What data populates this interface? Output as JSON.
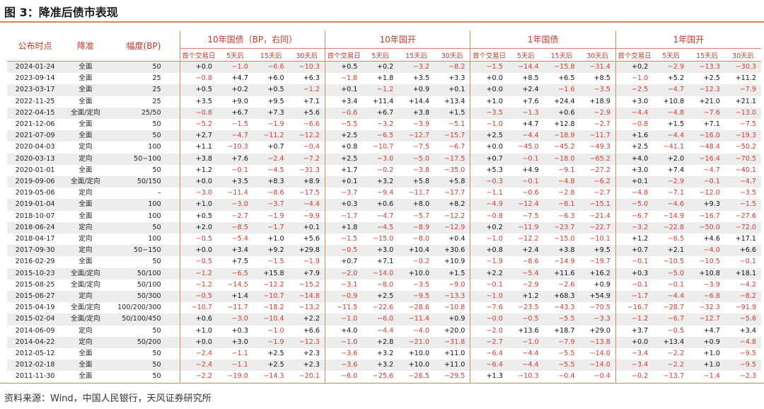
{
  "title": "图 3：降准后债市表现",
  "source": "资料来源：Wind，中国人民银行，天风证券研究所",
  "columns": {
    "date": "公布时点",
    "type": "降准",
    "size": "幅度(BP)",
    "groups": [
      "10年国债（BP，右同）",
      "10年国开",
      "1年国债",
      "1年国开"
    ],
    "sub": [
      "首个交易日",
      "5天后",
      "15天后",
      "30天后"
    ]
  },
  "rows": [
    [
      "2024-01-24",
      "全面",
      "50",
      "+0.0",
      "−1.0",
      "−6.6",
      "−10.3",
      "+0.5",
      "+0.2",
      "−3.2",
      "−8.2",
      "−1.5",
      "−14.4",
      "−15.8",
      "−31.4",
      "+0.2",
      "−2.9",
      "−13.3",
      "−30.3"
    ],
    [
      "2023-09-14",
      "全面",
      "25",
      "−0.8",
      "+4.7",
      "+6.0",
      "+6.3",
      "−1.8",
      "+1.8",
      "+3.5",
      "+3.3",
      "+0.0",
      "+8.5",
      "+6.5",
      "+8.5",
      "−1.0",
      "+5.2",
      "+2.5",
      "+11.2"
    ],
    [
      "2023-03-17",
      "全面",
      "25",
      "+0.5",
      "+0.2",
      "+0.5",
      "−1.2",
      "+0.1",
      "−1.2",
      "+0.9",
      "+0.1",
      "+0.0",
      "+2.4",
      "−1.6",
      "−3.5",
      "−2.5",
      "−4.7",
      "−12.3",
      "−7.9"
    ],
    [
      "2022-11-25",
      "全面",
      "25",
      "+3.5",
      "+9.0",
      "+9.5",
      "+7.1",
      "+3.4",
      "+11.4",
      "+14.4",
      "+13.4",
      "+1.0",
      "+7.6",
      "+24.4",
      "+18.9",
      "+3.0",
      "+10.8",
      "+21.0",
      "+21.1"
    ],
    [
      "2022-04-15",
      "全面/定向",
      "25/50",
      "−0.8",
      "+6.7",
      "+7.3",
      "+5.6",
      "−0.6",
      "+6.7",
      "+3.8",
      "+1.5",
      "−3.5",
      "−1.3",
      "+0.6",
      "−2.9",
      "−4.4",
      "−4.8",
      "−7.6",
      "−13.0"
    ],
    [
      "2021-12-06",
      "全面",
      "50",
      "−5.2",
      "−1.5",
      "−1.9",
      "−6.6",
      "−5.5",
      "−3.2",
      "−3.9",
      "−5.1",
      "−1.0",
      "+4.7",
      "+12.8",
      "−2.7",
      "−0.8",
      "+1.5",
      "+7.1",
      "−7.5"
    ],
    [
      "2021-07-09",
      "全面",
      "50",
      "+2.7",
      "−4.7",
      "−11.2",
      "−12.2",
      "+2.5",
      "−6.5",
      "−12.7",
      "−15.7",
      "+2.5",
      "−4.4",
      "−18.9",
      "−11.7",
      "+1.6",
      "−4.4",
      "−16.0",
      "−19.3"
    ],
    [
      "2020-04-03",
      "定向",
      "100",
      "+1.1",
      "−10.3",
      "+0.7",
      "−0.4",
      "+0.8",
      "−10.7",
      "−7.5",
      "−6.7",
      "+0.0",
      "−45.0",
      "−45.2",
      "−49.3",
      "+2.5",
      "−41.1",
      "−48.4",
      "−50.2"
    ],
    [
      "2020-03-13",
      "定向",
      "50−100",
      "+3.8",
      "+7.6",
      "−2.4",
      "−7.2",
      "+2.5",
      "−3.0",
      "−5.0",
      "−17.5",
      "+0.7",
      "−0.1",
      "−18.0",
      "−65.2",
      "+4.0",
      "+2.0",
      "−16.4",
      "−70.5"
    ],
    [
      "2020-01-01",
      "全面",
      "50",
      "+1.2",
      "−0.1",
      "−4.5",
      "−31.3",
      "+1.7",
      "−0.2",
      "−3.8",
      "−35.0",
      "+5.3",
      "+4.9",
      "−9.1",
      "−27.2",
      "+3.0",
      "+7.4",
      "−4.7",
      "−40.1"
    ],
    [
      "2019-09-06",
      "全面/定向",
      "50/150",
      "+0.0",
      "+3.5",
      "+8.3",
      "+8.9",
      "+0.1",
      "+3.2",
      "+5.8",
      "+5.8",
      "−0.3",
      "−0.1",
      "−4.8",
      "−6.2",
      "+0.1",
      "−2.9",
      "−0.1",
      "−4.7"
    ],
    [
      "2019-05-06",
      "定向",
      "–",
      "−3.0",
      "−11.4",
      "−8.6",
      "−17.5",
      "−3.7",
      "−9.4",
      "−11.7",
      "−17.7",
      "−1.1",
      "−0.6",
      "−2.8",
      "−2.7",
      "−4.8",
      "−7.1",
      "−12.0",
      "−3.5"
    ],
    [
      "2019-01-04",
      "全面",
      "100",
      "+1.0",
      "−3.0",
      "−3.7",
      "−4.4",
      "+0.3",
      "+0.6",
      "+8.0",
      "+8.2",
      "−4.9",
      "−12.4",
      "−8.1",
      "−15.1",
      "−5.0",
      "−4.6",
      "+9.3",
      "−1.5"
    ],
    [
      "2018-10-07",
      "全面",
      "100",
      "+0.5",
      "−2.7",
      "−1.9",
      "−9.9",
      "−1.7",
      "−4.7",
      "−5.7",
      "−12.2",
      "−0.8",
      "−7.5",
      "−6.3",
      "−21.4",
      "−6.7",
      "−14.9",
      "−16.7",
      "−27.6"
    ],
    [
      "2018-06-24",
      "定向",
      "50",
      "+2.0",
      "−8.5",
      "−1.7",
      "+0.1",
      "+1.8",
      "−4.5",
      "−8.9",
      "−12.9",
      "+0.2",
      "−11.9",
      "−23.7",
      "−22.7",
      "−3.2",
      "−22.8",
      "−50.0",
      "−72.0"
    ],
    [
      "2018-04-17",
      "定向",
      "100",
      "−0.5",
      "−5.4",
      "+1.0",
      "+5.6",
      "−1.5",
      "−15.0",
      "−8.0",
      "+0.4",
      "−1.0",
      "−12.2",
      "−15.0",
      "−10.1",
      "+1.2",
      "−6.5",
      "+4.6",
      "+17.1"
    ],
    [
      "2017-09-30",
      "定向",
      "50−150",
      "+0.0",
      "+3.4",
      "+9.2",
      "+29.8",
      "−0.5",
      "+3.0",
      "+10.4",
      "+30.6",
      "+0.8",
      "+2.4",
      "+3.8",
      "+9.5",
      "+0.7",
      "+2.1",
      "−4.0",
      "+6.6"
    ],
    [
      "2016-02-29",
      "全面",
      "50",
      "−0.5",
      "+7.5",
      "−1.5",
      "−1.9",
      "+0.7",
      "+7.1",
      "−0.2",
      "+10.9",
      "−1.9",
      "−8.6",
      "−14.9",
      "−19.7",
      "−0.1",
      "−10.5",
      "−10.5",
      "−0.1"
    ],
    [
      "2015-10-23",
      "全面/定向",
      "50/100",
      "−1.2",
      "−6.5",
      "+15.8",
      "+7.9",
      "−2.0",
      "−14.0",
      "+10.0",
      "+1.5",
      "+2.2",
      "−5.4",
      "+11.6",
      "+16.2",
      "+0.3",
      "−5.0",
      "+10.8",
      "+18.1"
    ],
    [
      "2015-08-25",
      "全面/定向",
      "50/100",
      "−1.2",
      "−14.5",
      "−12.2",
      "−15.2",
      "−3.1",
      "−8.0",
      "−3.5",
      "−9.0",
      "−0.1",
      "−2.9",
      "−2.6",
      "+0.9",
      "−0.1",
      "−0.1",
      "−3.9",
      "−4.2"
    ],
    [
      "2015-06-27",
      "定向",
      "50/300",
      "−0.5",
      "+1.4",
      "−10.7",
      "−14.8",
      "−0.9",
      "+2.5",
      "−9.5",
      "−13.3",
      "−1.0",
      "+1.2",
      "+68.3",
      "+54.9",
      "−1.7",
      "−4.4",
      "−6.8",
      "−8.2"
    ],
    [
      "2015-04-19",
      "全面/定向",
      "100/200/300",
      "−10.7",
      "−11.7",
      "−18.2",
      "−13.2",
      "−11.5",
      "−22.6",
      "−28.6",
      "−10.8",
      "−7.6",
      "−23.5",
      "−43.3",
      "−70.5",
      "−16.7",
      "−28.7",
      "−32.3",
      "−91.9"
    ],
    [
      "2015-02-04",
      "全面/定向",
      "50/100/450",
      "+0.6",
      "−3.0",
      "−10.4",
      "+2.2",
      "−1.0",
      "−6.0",
      "−11.4",
      "+0.9",
      "−0.0",
      "−0.5",
      "−5.5",
      "−3.3",
      "−1.2",
      "−6.7",
      "−12.7",
      "−5.6"
    ],
    [
      "2014-06-09",
      "定向",
      "50",
      "+1.0",
      "+0.3",
      "−1.0",
      "+6.6",
      "+4.0",
      "−4.4",
      "−4.0",
      "+20.0",
      "−2.0",
      "+13.6",
      "+18.7",
      "+29.0",
      "+3.7",
      "−0.5",
      "+4.7",
      "+3.4"
    ],
    [
      "2014-04-22",
      "定向",
      "50/200",
      "+0.0",
      "+3.0",
      "−1.9",
      "−12.3",
      "−1.0",
      "+2.8",
      "−21.0",
      "−31.8",
      "−2.7",
      "−1.0",
      "−7.9",
      "−13.8",
      "+0.0",
      "+13.4",
      "+0.9",
      "−4.8"
    ],
    [
      "2012-05-12",
      "全面",
      "50",
      "−2.4",
      "−1.1",
      "+2.5",
      "+2.3",
      "−3.6",
      "+3.2",
      "+10.0",
      "+11.0",
      "−6.4",
      "−4.4",
      "−5.5",
      "−14.0",
      "−3.4",
      "−2.2",
      "+1.0",
      "−9.5"
    ],
    [
      "2012-02-18",
      "全面",
      "50",
      "−2.4",
      "−1.1",
      "+2.5",
      "+2.3",
      "−3.6",
      "+3.2",
      "+10.0",
      "+11.0",
      "−6.4",
      "−4.4",
      "−5.5",
      "−14.0",
      "−3.4",
      "−2.2",
      "+1.0",
      "−9.5"
    ],
    [
      "2011-11-30",
      "全面",
      "50",
      "−2.2",
      "−19.0",
      "−14.3",
      "−20.1",
      "−6.0",
      "−25.6",
      "−26.5",
      "−29.5",
      "+1.3",
      "−10.3",
      "−0.4",
      "−0.4",
      "−0.2",
      "−13.7",
      "−1.4",
      "−2.3"
    ]
  ]
}
